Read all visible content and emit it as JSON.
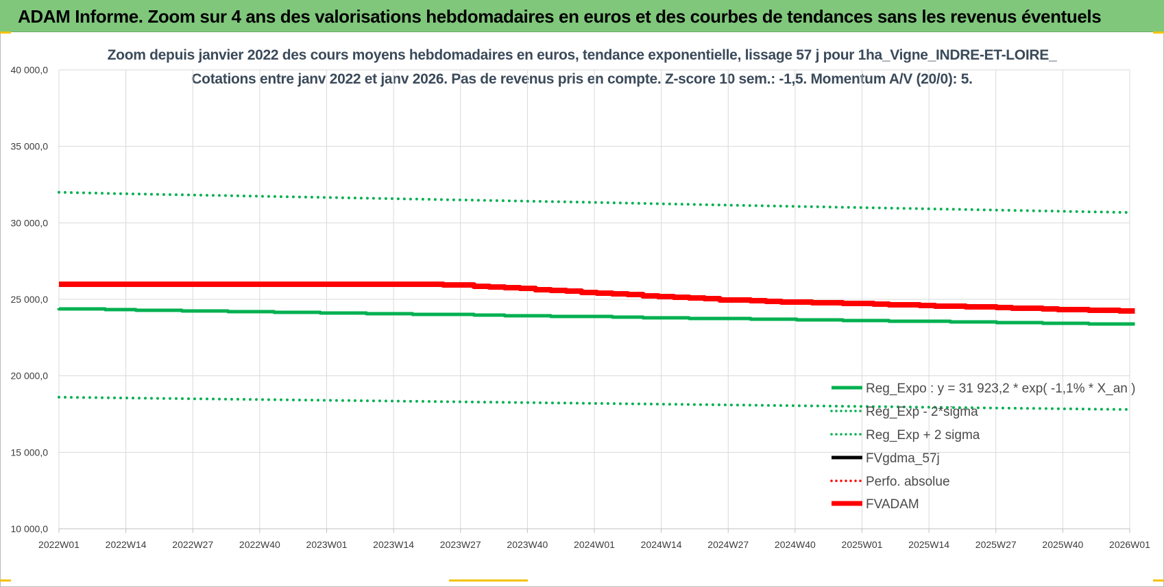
{
  "banner": {
    "title": "ADAM Informe. Zoom sur 4 ans des valorisations hebdomadaires en euros et des courbes de tendances sans les revenus éventuels"
  },
  "colors": {
    "banner": "#80c77c",
    "reg_expo": "#00b050",
    "fvadam": "#ff0000",
    "fvgdma": "#000000",
    "perfo": "#ff0000",
    "grid": "#d9d9d9"
  },
  "chart_data": {
    "type": "line",
    "title": "Zoom depuis janvier 2022 des cours moyens hebdomadaires en euros, tendance exponentielle, lissage 57 j pour 1ha_Vigne_INDRE-ET-LOIRE_",
    "subtitle": "Cotations entre janv 2022 et janv 2026. Pas de revenus pris en compte. Z-score 10 sem.: -1,5. Momentum A/V (20/0): 5.",
    "xlabel": "",
    "ylabel": "",
    "ylim": [
      10000,
      40000
    ],
    "y_ticks": [
      "10 000,0",
      "15 000,0",
      "20 000,0",
      "25 000,0",
      "30 000,0",
      "35 000,0",
      "40 000,0"
    ],
    "x_ticks": [
      "2022W01",
      "2022W14",
      "2022W27",
      "2022W40",
      "2023W01",
      "2023W14",
      "2023W27",
      "2023W40",
      "2024W01",
      "2024W14",
      "2024W27",
      "2024W40",
      "2025W01",
      "2025W14",
      "2025W27",
      "2025W40",
      "2026W01"
    ],
    "grid": true,
    "legend_position": "bottom-right",
    "series": [
      {
        "name": "Reg_Expo : y = 31 923,2 * exp( -1,1% *  X_an )",
        "style": "solid",
        "color": "#00b050",
        "x": [
          "2022W01",
          "2022W14",
          "2022W27",
          "2022W40",
          "2023W01",
          "2023W14",
          "2023W27",
          "2023W40",
          "2024W01",
          "2024W14",
          "2024W27",
          "2024W40",
          "2025W01",
          "2025W14",
          "2025W27",
          "2025W40",
          "2026W01"
        ],
        "values": [
          24400,
          24320,
          24250,
          24180,
          24120,
          24060,
          24000,
          23930,
          23870,
          23800,
          23740,
          23680,
          23620,
          23560,
          23500,
          23440,
          23380
        ]
      },
      {
        "name": "Reg_Exp - 2*sigma",
        "style": "dotted",
        "color": "#00b050",
        "x": [
          "2022W01",
          "2022W14",
          "2022W27",
          "2022W40",
          "2023W01",
          "2023W14",
          "2023W27",
          "2023W40",
          "2024W01",
          "2024W14",
          "2024W27",
          "2024W40",
          "2025W01",
          "2025W14",
          "2025W27",
          "2025W40",
          "2026W01"
        ],
        "values": [
          18600,
          18550,
          18500,
          18450,
          18400,
          18350,
          18300,
          18250,
          18200,
          18150,
          18100,
          18050,
          18000,
          17950,
          17900,
          17850,
          17800
        ]
      },
      {
        "name": "Reg_Exp + 2 sigma",
        "style": "dotted",
        "color": "#00b050",
        "x": [
          "2022W01",
          "2022W14",
          "2022W27",
          "2022W40",
          "2023W01",
          "2023W14",
          "2023W27",
          "2023W40",
          "2024W01",
          "2024W14",
          "2024W27",
          "2024W40",
          "2025W01",
          "2025W14",
          "2025W27",
          "2025W40",
          "2026W01"
        ],
        "values": [
          32000,
          31900,
          31820,
          31740,
          31660,
          31580,
          31500,
          31420,
          31340,
          31250,
          31160,
          31080,
          31000,
          30920,
          30840,
          30760,
          30680
        ]
      },
      {
        "name": "FVgdma_57j",
        "style": "solid",
        "color": "#000000",
        "x": [
          "2022W01",
          "2022W14",
          "2022W27",
          "2022W40",
          "2023W01",
          "2023W14",
          "2023W27",
          "2023W40",
          "2024W01",
          "2024W14",
          "2024W27",
          "2024W40",
          "2025W01",
          "2025W14",
          "2025W27",
          "2025W40",
          "2026W01"
        ],
        "values": [
          26000,
          26000,
          26000,
          26000,
          26000,
          26000,
          25950,
          25700,
          25450,
          25200,
          24970,
          24830,
          24730,
          24600,
          24480,
          24350,
          24250
        ]
      },
      {
        "name": "Perfo. absolue",
        "style": "dotted",
        "color": "#ff0000",
        "x": [],
        "values": []
      },
      {
        "name": "FVADAM",
        "style": "solid",
        "color": "#ff0000",
        "x": [
          "2022W01",
          "2022W14",
          "2022W27",
          "2022W40",
          "2023W01",
          "2023W14",
          "2023W27",
          "2023W40",
          "2024W01",
          "2024W14",
          "2024W27",
          "2024W40",
          "2025W01",
          "2025W14",
          "2025W27",
          "2025W40",
          "2026W01"
        ],
        "values": [
          26000,
          26000,
          26000,
          26000,
          26000,
          26000,
          25950,
          25700,
          25450,
          25200,
          24970,
          24830,
          24730,
          24600,
          24480,
          24350,
          24250
        ]
      }
    ]
  }
}
